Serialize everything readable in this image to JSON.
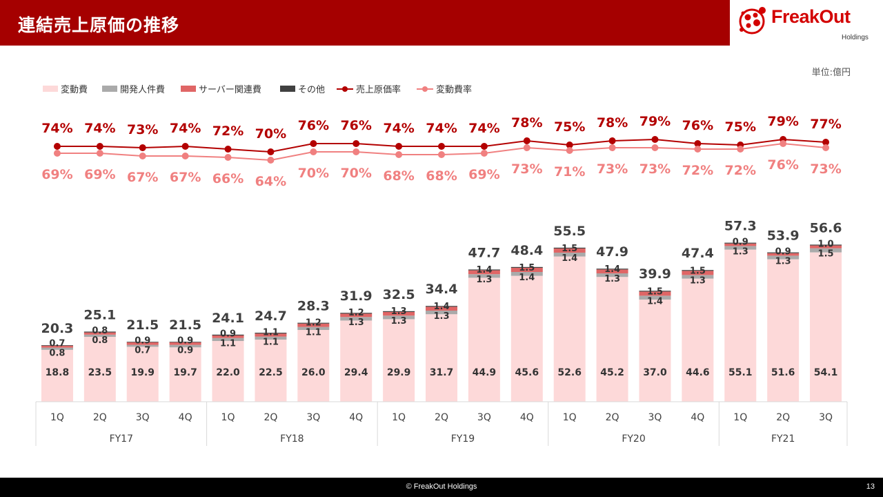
{
  "header": {
    "title": "連結売上原価の推移"
  },
  "logo": {
    "name": "FreakOut",
    "sub": "Holdings"
  },
  "unit_label": "単位:億円",
  "footer": {
    "copyright": "© FreakOut Holdings",
    "page": "13"
  },
  "colors": {
    "header_bg": "#a50000",
    "variable": "#fdd9d9",
    "personnel": "#aaaaaa",
    "server": "#e06666",
    "other": "#404040",
    "cost_rate": "#b30000",
    "variable_rate": "#f08080"
  },
  "chart_data": {
    "type": "bar",
    "stacked": true,
    "categories": [
      "1Q",
      "2Q",
      "3Q",
      "4Q",
      "1Q",
      "2Q",
      "3Q",
      "4Q",
      "1Q",
      "2Q",
      "3Q",
      "4Q",
      "1Q",
      "2Q",
      "3Q",
      "4Q",
      "1Q",
      "2Q",
      "3Q"
    ],
    "groups": [
      {
        "label": "FY17",
        "count": 4
      },
      {
        "label": "FY18",
        "count": 4
      },
      {
        "label": "FY19",
        "count": 4
      },
      {
        "label": "FY20",
        "count": 4
      },
      {
        "label": "FY21",
        "count": 3
      }
    ],
    "legend_position": "top-left",
    "series": [
      {
        "name": "変動費",
        "kind": "bar",
        "values": [
          18.8,
          23.5,
          19.9,
          19.7,
          22.0,
          22.5,
          26.0,
          29.4,
          29.9,
          31.7,
          44.9,
          45.6,
          52.6,
          45.2,
          37.0,
          44.6,
          55.1,
          51.6,
          54.1
        ]
      },
      {
        "name": "開発人件費",
        "kind": "bar",
        "values": [
          0.8,
          0.8,
          0.7,
          0.9,
          1.1,
          1.1,
          1.1,
          1.3,
          1.3,
          1.3,
          1.3,
          1.4,
          1.4,
          1.3,
          1.4,
          1.3,
          1.3,
          1.3,
          1.5
        ]
      },
      {
        "name": "サーバー関連費",
        "kind": "bar",
        "values": [
          0.7,
          0.8,
          0.9,
          0.9,
          0.9,
          1.1,
          1.2,
          1.2,
          1.3,
          1.4,
          1.4,
          1.5,
          1.5,
          1.4,
          1.5,
          1.5,
          0.9,
          0.9,
          1.0
        ]
      },
      {
        "name": "その他",
        "kind": "bar",
        "values": [
          0.2,
          0.3,
          0.2,
          0.2,
          0.3,
          0.3,
          0.3,
          0.3,
          0.3,
          0.3,
          0.3,
          0.3,
          0.3,
          0.3,
          0.3,
          0.3,
          0.3,
          0.3,
          0.3
        ]
      },
      {
        "name": "売上原価率",
        "kind": "line",
        "values": [
          74,
          74,
          73,
          74,
          72,
          70,
          76,
          76,
          74,
          74,
          74,
          78,
          75,
          78,
          79,
          76,
          75,
          79,
          77
        ],
        "labels": [
          "74%",
          "74%",
          "73%",
          "74%",
          "72%",
          "70%",
          "76%",
          "76%",
          "74%",
          "74%",
          "74%",
          "78%",
          "75%",
          "78%",
          "79%",
          "76%",
          "75%",
          "79%",
          "77%"
        ]
      },
      {
        "name": "変動費率",
        "kind": "line",
        "values": [
          69,
          69,
          67,
          67,
          66,
          64,
          70,
          70,
          68,
          68,
          69,
          73,
          71,
          73,
          73,
          72,
          72,
          76,
          73
        ],
        "labels": [
          "69%",
          "69%",
          "67%",
          "67%",
          "66%",
          "64%",
          "70%",
          "70%",
          "68%",
          "68%",
          "69%",
          "73%",
          "71%",
          "73%",
          "73%",
          "72%",
          "72%",
          "76%",
          "73%"
        ]
      }
    ],
    "totals": [
      "20.3",
      "25.1",
      "21.5",
      "21.5",
      "24.1",
      "24.7",
      "28.3",
      "31.9",
      "32.5",
      "34.4",
      "47.7",
      "48.4",
      "55.5",
      "47.9",
      "39.9",
      "47.4",
      "57.3",
      "53.9",
      "56.6"
    ],
    "variable_labels": [
      "18.8",
      "23.5",
      "19.9",
      "19.7",
      "22.0",
      "22.5",
      "26.0",
      "29.4",
      "29.9",
      "31.7",
      "44.9",
      "45.6",
      "52.6",
      "45.2",
      "37.0",
      "44.6",
      "55.1",
      "51.6",
      "54.1"
    ],
    "personnel_labels": [
      "0.8",
      "0.8",
      "0.7",
      "0.9",
      "1.1",
      "1.1",
      "1.1",
      "1.3",
      "1.3",
      "1.3",
      "1.3",
      "1.4",
      "1.4",
      "1.3",
      "1.4",
      "1.3",
      "1.3",
      "1.3",
      "1.5"
    ],
    "server_labels": [
      "0.7",
      "0.8",
      "0.9",
      "0.9",
      "0.9",
      "1.1",
      "1.2",
      "1.2",
      "1.3",
      "1.4",
      "1.4",
      "1.5",
      "1.5",
      "1.4",
      "1.5",
      "1.5",
      "0.9",
      "0.9",
      "1.0"
    ],
    "ylim_bars": [
      0,
      60
    ],
    "ylim_rates": [
      60,
      80
    ]
  }
}
